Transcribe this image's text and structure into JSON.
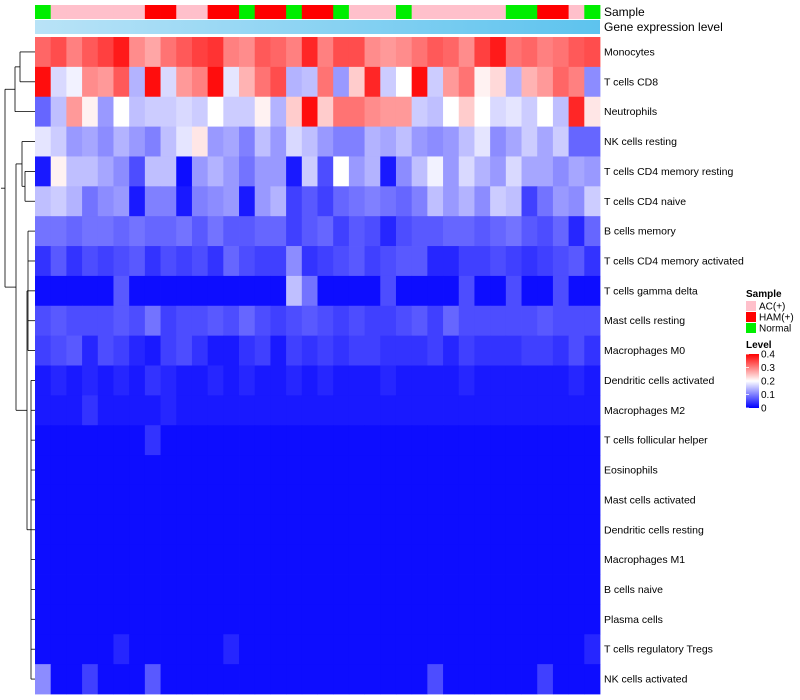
{
  "chart_data": {
    "type": "heatmap",
    "annotations": {
      "sample_title": "Sample",
      "expression_title": "Gene expression level"
    },
    "legend": {
      "sample_title": "Sample",
      "sample_entries": [
        {
          "label": "AC(+)",
          "color": "#ffc0cb"
        },
        {
          "label": "HAM(+)",
          "color": "#ff0000"
        },
        {
          "label": "Normal",
          "color": "#00ee00"
        }
      ],
      "level_title": "Level",
      "level_ticks": [
        "0.4",
        "0.3",
        "0.2",
        "0.1",
        "0"
      ],
      "level_range": [
        0,
        0.4
      ]
    },
    "colors": {
      "low": "#0000ff",
      "mid": "#ffffff",
      "high": "#ff0000",
      "expression_bar_start": "#b9e3f7",
      "expression_bar_end": "#5dc3ee",
      "AC": "#ffc0cb",
      "HAM": "#ff0000",
      "Normal": "#00ee00"
    },
    "samples": [
      "N",
      "A",
      "A",
      "A",
      "A",
      "A",
      "A",
      "H",
      "H",
      "A",
      "A",
      "H",
      "H",
      "N",
      "H",
      "H",
      "N",
      "H",
      "H",
      "N",
      "A",
      "A",
      "A",
      "N",
      "A",
      "A",
      "A",
      "A",
      "A",
      "A",
      "N",
      "N",
      "H",
      "H",
      "A",
      "N"
    ],
    "rows": [
      {
        "label": "Monocytes",
        "values": [
          0.32,
          0.34,
          0.3,
          0.33,
          0.35,
          0.38,
          0.29,
          0.27,
          0.31,
          0.33,
          0.35,
          0.36,
          0.3,
          0.29,
          0.33,
          0.32,
          0.3,
          0.37,
          0.3,
          0.34,
          0.34,
          0.29,
          0.28,
          0.29,
          0.31,
          0.33,
          0.32,
          0.29,
          0.35,
          0.38,
          0.31,
          0.32,
          0.3,
          0.31,
          0.33,
          0.34
        ]
      },
      {
        "label": "T cells CD8",
        "values": [
          0.39,
          0.17,
          0.19,
          0.29,
          0.28,
          0.33,
          0.14,
          0.39,
          0.17,
          0.28,
          0.3,
          0.39,
          0.18,
          0.26,
          0.31,
          0.34,
          0.14,
          0.15,
          0.31,
          0.12,
          0.24,
          0.37,
          0.16,
          0.2,
          0.39,
          0.16,
          0.28,
          0.31,
          0.21,
          0.23,
          0.14,
          0.26,
          0.28,
          0.32,
          0.3,
          0.11
        ]
      },
      {
        "label": "Neutrophils",
        "values": [
          0.08,
          0.15,
          0.28,
          0.21,
          0.12,
          0.2,
          0.15,
          0.16,
          0.16,
          0.17,
          0.16,
          0.2,
          0.16,
          0.16,
          0.21,
          0.14,
          0.24,
          0.39,
          0.24,
          0.31,
          0.31,
          0.29,
          0.28,
          0.28,
          0.16,
          0.15,
          0.2,
          0.24,
          0.2,
          0.17,
          0.18,
          0.16,
          0.2,
          0.15,
          0.37,
          0.22
        ]
      },
      {
        "label": "NK cells resting",
        "values": [
          0.18,
          0.16,
          0.12,
          0.13,
          0.11,
          0.14,
          0.12,
          0.1,
          0.15,
          0.18,
          0.22,
          0.12,
          0.13,
          0.1,
          0.15,
          0.12,
          0.17,
          0.15,
          0.12,
          0.1,
          0.1,
          0.14,
          0.13,
          0.15,
          0.12,
          0.11,
          0.12,
          0.15,
          0.18,
          0.11,
          0.13,
          0.16,
          0.13,
          0.16,
          0.08,
          0.08
        ]
      },
      {
        "label": "T cells CD4 memory resting",
        "values": [
          0.02,
          0.21,
          0.15,
          0.15,
          0.13,
          0.11,
          0.06,
          0.15,
          0.15,
          0.01,
          0.12,
          0.14,
          0.12,
          0.09,
          0.12,
          0.12,
          0.02,
          0.16,
          0.06,
          0.2,
          0.12,
          0.14,
          0.02,
          0.11,
          0.15,
          0.19,
          0.12,
          0.17,
          0.14,
          0.12,
          0.17,
          0.13,
          0.13,
          0.11,
          0.13,
          0.12
        ]
      },
      {
        "label": "T cells CD4 naive",
        "values": [
          0.15,
          0.16,
          0.14,
          0.09,
          0.11,
          0.12,
          0.02,
          0.1,
          0.1,
          0.02,
          0.1,
          0.11,
          0.12,
          0.02,
          0.12,
          0.14,
          0.05,
          0.07,
          0.05,
          0.08,
          0.09,
          0.1,
          0.09,
          0.08,
          0.1,
          0.15,
          0.12,
          0.14,
          0.11,
          0.16,
          0.15,
          0.05,
          0.09,
          0.12,
          0.11,
          0.16
        ]
      },
      {
        "label": "B cells memory",
        "values": [
          0.09,
          0.09,
          0.08,
          0.09,
          0.09,
          0.08,
          0.09,
          0.08,
          0.08,
          0.09,
          0.07,
          0.09,
          0.07,
          0.07,
          0.08,
          0.08,
          0.05,
          0.07,
          0.08,
          0.05,
          0.07,
          0.06,
          0.03,
          0.06,
          0.07,
          0.07,
          0.08,
          0.08,
          0.07,
          0.08,
          0.09,
          0.07,
          0.06,
          0.08,
          0.03,
          0.08
        ]
      },
      {
        "label": "T cells CD4 memory activated",
        "values": [
          0.04,
          0.07,
          0.04,
          0.06,
          0.05,
          0.06,
          0.07,
          0.04,
          0.06,
          0.05,
          0.06,
          0.04,
          0.08,
          0.06,
          0.05,
          0.05,
          0.11,
          0.04,
          0.05,
          0.06,
          0.07,
          0.05,
          0.06,
          0.07,
          0.07,
          0.03,
          0.03,
          0.05,
          0.05,
          0.06,
          0.05,
          0.04,
          0.05,
          0.06,
          0.07,
          0.04
        ]
      },
      {
        "label": "T cells gamma delta",
        "values": [
          0.01,
          0.01,
          0.01,
          0.01,
          0.01,
          0.07,
          0.01,
          0.01,
          0.01,
          0.01,
          0.01,
          0.01,
          0.01,
          0.01,
          0.01,
          0.01,
          0.15,
          0.09,
          0.01,
          0.01,
          0.01,
          0.01,
          0.06,
          0.01,
          0.01,
          0.01,
          0.01,
          0.06,
          0.01,
          0.01,
          0.06,
          0.01,
          0.01,
          0.06,
          0.01,
          0.01
        ]
      },
      {
        "label": "Mast cells resting",
        "values": [
          0.06,
          0.07,
          0.06,
          0.06,
          0.06,
          0.07,
          0.06,
          0.09,
          0.05,
          0.06,
          0.06,
          0.07,
          0.06,
          0.08,
          0.06,
          0.05,
          0.06,
          0.07,
          0.06,
          0.05,
          0.06,
          0.05,
          0.05,
          0.06,
          0.07,
          0.05,
          0.08,
          0.06,
          0.06,
          0.06,
          0.06,
          0.06,
          0.07,
          0.06,
          0.06,
          0.06
        ]
      },
      {
        "label": "Macrophages M0",
        "values": [
          0.05,
          0.06,
          0.07,
          0.03,
          0.06,
          0.05,
          0.03,
          0.02,
          0.05,
          0.06,
          0.04,
          0.02,
          0.02,
          0.04,
          0.05,
          0.02,
          0.05,
          0.04,
          0.05,
          0.04,
          0.05,
          0.05,
          0.04,
          0.04,
          0.04,
          0.05,
          0.03,
          0.05,
          0.04,
          0.04,
          0.04,
          0.05,
          0.05,
          0.04,
          0.06,
          0.04
        ]
      },
      {
        "label": "Dendritic cells activated",
        "values": [
          0.02,
          0.03,
          0.02,
          0.03,
          0.02,
          0.03,
          0.02,
          0.04,
          0.03,
          0.02,
          0.02,
          0.03,
          0.02,
          0.03,
          0.02,
          0.02,
          0.03,
          0.02,
          0.03,
          0.02,
          0.02,
          0.02,
          0.03,
          0.02,
          0.02,
          0.02,
          0.02,
          0.03,
          0.02,
          0.02,
          0.02,
          0.02,
          0.02,
          0.02,
          0.03,
          0.02
        ]
      },
      {
        "label": "Macrophages M2",
        "values": [
          0.02,
          0.02,
          0.02,
          0.04,
          0.02,
          0.02,
          0.02,
          0.02,
          0.03,
          0.02,
          0.02,
          0.02,
          0.02,
          0.02,
          0.02,
          0.02,
          0.02,
          0.02,
          0.02,
          0.02,
          0.02,
          0.02,
          0.02,
          0.02,
          0.02,
          0.02,
          0.02,
          0.02,
          0.02,
          0.02,
          0.02,
          0.02,
          0.02,
          0.02,
          0.02,
          0.02
        ]
      },
      {
        "label": "T cells follicular helper",
        "values": [
          0.01,
          0.01,
          0.01,
          0.01,
          0.01,
          0.01,
          0.01,
          0.04,
          0.01,
          0.01,
          0.01,
          0.01,
          0.01,
          0.01,
          0.01,
          0.01,
          0.01,
          0.01,
          0.01,
          0.01,
          0.01,
          0.01,
          0.01,
          0.01,
          0.01,
          0.01,
          0.01,
          0.01,
          0.01,
          0.01,
          0.01,
          0.01,
          0.01,
          0.01,
          0.01,
          0.01
        ]
      },
      {
        "label": "Eosinophils",
        "values": [
          0.01,
          0.01,
          0.01,
          0.01,
          0.01,
          0.01,
          0.01,
          0.01,
          0.01,
          0.01,
          0.01,
          0.01,
          0.01,
          0.01,
          0.01,
          0.01,
          0.01,
          0.01,
          0.01,
          0.01,
          0.01,
          0.01,
          0.01,
          0.01,
          0.01,
          0.01,
          0.01,
          0.01,
          0.01,
          0.01,
          0.01,
          0.01,
          0.01,
          0.01,
          0.01,
          0.01
        ]
      },
      {
        "label": "Mast cells activated",
        "values": [
          0.01,
          0.01,
          0.01,
          0.01,
          0.01,
          0.01,
          0.01,
          0.01,
          0.01,
          0.01,
          0.01,
          0.01,
          0.01,
          0.01,
          0.01,
          0.01,
          0.01,
          0.01,
          0.01,
          0.01,
          0.01,
          0.01,
          0.01,
          0.01,
          0.01,
          0.01,
          0.01,
          0.01,
          0.01,
          0.01,
          0.01,
          0.01,
          0.01,
          0.01,
          0.01,
          0.01
        ]
      },
      {
        "label": "Dendritic cells resting",
        "values": [
          0.01,
          0.01,
          0.01,
          0.01,
          0.01,
          0.01,
          0.01,
          0.01,
          0.01,
          0.01,
          0.01,
          0.01,
          0.01,
          0.01,
          0.01,
          0.01,
          0.01,
          0.01,
          0.01,
          0.01,
          0.01,
          0.01,
          0.01,
          0.01,
          0.01,
          0.01,
          0.01,
          0.01,
          0.01,
          0.01,
          0.01,
          0.01,
          0.01,
          0.01,
          0.01,
          0.01
        ]
      },
      {
        "label": "Macrophages M1",
        "values": [
          0.01,
          0.01,
          0.01,
          0.01,
          0.01,
          0.01,
          0.01,
          0.01,
          0.01,
          0.01,
          0.01,
          0.01,
          0.01,
          0.01,
          0.01,
          0.01,
          0.01,
          0.01,
          0.01,
          0.01,
          0.01,
          0.01,
          0.01,
          0.01,
          0.01,
          0.01,
          0.01,
          0.01,
          0.01,
          0.01,
          0.01,
          0.01,
          0.01,
          0.01,
          0.01,
          0.01
        ]
      },
      {
        "label": "B cells naive",
        "values": [
          0.01,
          0.01,
          0.01,
          0.01,
          0.01,
          0.01,
          0.01,
          0.01,
          0.01,
          0.01,
          0.01,
          0.01,
          0.01,
          0.01,
          0.01,
          0.01,
          0.01,
          0.01,
          0.01,
          0.01,
          0.01,
          0.01,
          0.01,
          0.01,
          0.01,
          0.01,
          0.01,
          0.01,
          0.01,
          0.01,
          0.01,
          0.01,
          0.01,
          0.01,
          0.01,
          0.01
        ]
      },
      {
        "label": "Plasma cells",
        "values": [
          0.01,
          0.01,
          0.01,
          0.01,
          0.01,
          0.01,
          0.01,
          0.01,
          0.01,
          0.01,
          0.01,
          0.01,
          0.01,
          0.01,
          0.01,
          0.01,
          0.01,
          0.01,
          0.01,
          0.01,
          0.01,
          0.01,
          0.01,
          0.01,
          0.01,
          0.01,
          0.01,
          0.01,
          0.01,
          0.01,
          0.01,
          0.01,
          0.01,
          0.01,
          0.01,
          0.01
        ]
      },
      {
        "label": "T cells regulatory  Tregs",
        "values": [
          0.01,
          0.01,
          0.01,
          0.01,
          0.01,
          0.03,
          0.01,
          0.01,
          0.01,
          0.01,
          0.01,
          0.01,
          0.03,
          0.01,
          0.01,
          0.01,
          0.01,
          0.01,
          0.01,
          0.01,
          0.01,
          0.01,
          0.01,
          0.01,
          0.01,
          0.01,
          0.01,
          0.01,
          0.01,
          0.01,
          0.01,
          0.01,
          0.01,
          0.01,
          0.01,
          0.03
        ]
      },
      {
        "label": "NK cells activated",
        "values": [
          0.11,
          0.01,
          0.01,
          0.05,
          0.01,
          0.01,
          0.01,
          0.07,
          0.01,
          0.01,
          0.01,
          0.01,
          0.01,
          0.01,
          0.01,
          0.01,
          0.01,
          0.01,
          0.01,
          0.01,
          0.01,
          0.01,
          0.01,
          0.01,
          0.01,
          0.06,
          0.01,
          0.01,
          0.01,
          0.01,
          0.01,
          0.01,
          0.05,
          0.01,
          0.01,
          0.01
        ]
      }
    ]
  }
}
